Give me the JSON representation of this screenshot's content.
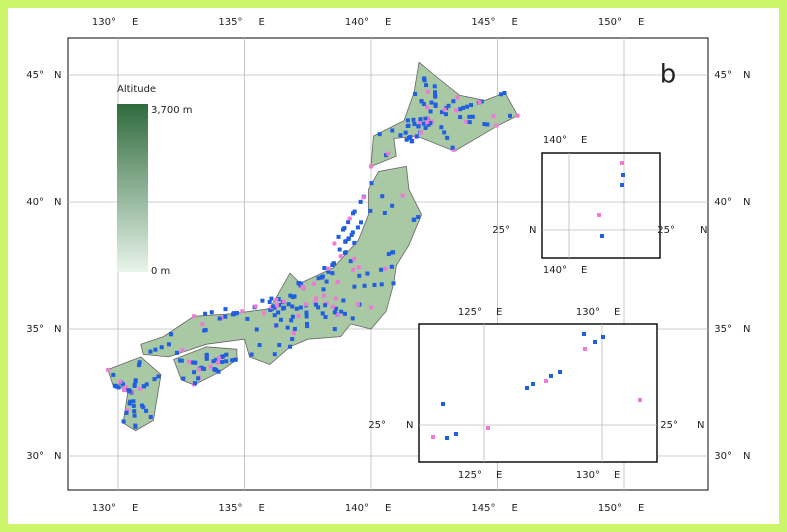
{
  "map": {
    "panel_label": "b",
    "legend": {
      "title": "Altitude",
      "max_label": "3,700 m",
      "min_label": "0 m"
    },
    "lon_hemisphere": "E",
    "lat_hemisphere": "N",
    "lon_ticks": [
      {
        "value": 130,
        "label": "130°"
      },
      {
        "value": 135,
        "label": "135°"
      },
      {
        "value": 140,
        "label": "140°"
      },
      {
        "value": 145,
        "label": "145°"
      },
      {
        "value": 150,
        "label": "150°"
      }
    ],
    "lat_ticks": [
      {
        "value": 45,
        "label": "45°"
      },
      {
        "value": 40,
        "label": "40°"
      },
      {
        "value": 35,
        "label": "35°"
      },
      {
        "value": 30,
        "label": "30°"
      }
    ],
    "insets": [
      {
        "lon_ticks": [
          {
            "value": 140,
            "label": "140°"
          }
        ],
        "lat_ticks": [
          {
            "value": 25,
            "label": "25°"
          }
        ]
      },
      {
        "lon_ticks": [
          {
            "value": 125,
            "label": "125°"
          },
          {
            "value": 130,
            "label": "130°"
          }
        ],
        "lat_ticks": [
          {
            "value": 25,
            "label": "25°"
          }
        ]
      }
    ]
  }
}
